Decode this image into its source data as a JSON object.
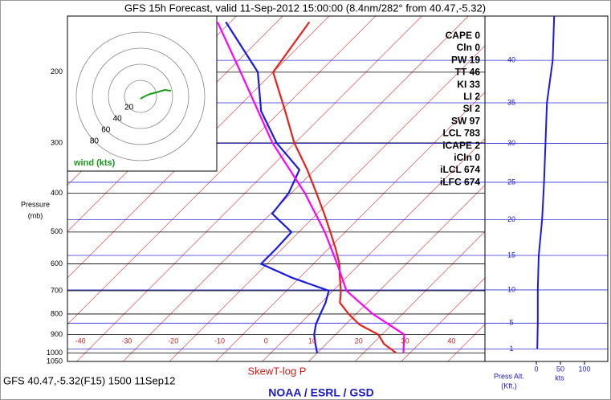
{
  "chart_data": {
    "type": "skewt",
    "title": "GFS 15h Forecast, valid 11-Sep-2012 15:00:00 (8.4nm/282° from 40.47,-5.32)",
    "subtitle": "GFS 40.47,-5.32(F15) 1500 11Sep12",
    "xlabel": "SkewT-log P",
    "credit": "NOAA / ESRL / GSD",
    "ylabel": "Pressure",
    "yunit": "(mb)",
    "log_y": true,
    "ylim": [
      1050,
      145
    ],
    "yticks": [
      1050,
      1000,
      900,
      800,
      700,
      600,
      500,
      400,
      300,
      200
    ],
    "xlim": [
      -42,
      48
    ],
    "xticks": [
      -40,
      -30,
      -20,
      -10,
      0,
      10,
      20,
      30,
      40
    ],
    "isotherms": [
      -120,
      -110,
      -100,
      -90,
      -80,
      -70,
      -60,
      -50,
      -40,
      -30,
      -20,
      -10,
      0,
      10,
      20,
      30,
      40
    ],
    "series": [
      {
        "color": "#e8211c",
        "pressure": [
          1000,
          950,
          900,
          850,
          800,
          750,
          700,
          650,
          600,
          550,
          500,
          450,
          400,
          350,
          300,
          250,
          200,
          150
        ],
        "values": [
          27,
          22.5,
          19.2,
          13,
          8.4,
          4.1,
          1.7,
          -1.3,
          -4.4,
          -8.5,
          -13.2,
          -18.5,
          -24.6,
          -31.6,
          -40.2,
          -49,
          -60,
          -63
        ]
      },
      {
        "color": "#1a1ae6",
        "pressure": [
          1000,
          950,
          900,
          850,
          800,
          750,
          700,
          650,
          600,
          550,
          500,
          450,
          400,
          350,
          300,
          250,
          200,
          150
        ],
        "values": [
          10,
          7.7,
          5.4,
          3.6,
          2.3,
          1,
          -0.9,
          -11.6,
          -21.3,
          -21.3,
          -21.6,
          -29.7,
          -30.6,
          -33.3,
          -44,
          -54.2,
          -63.3,
          -81
        ]
      },
      {
        "color": "#ff00ff",
        "pressure": [
          1000,
          900,
          800,
          700,
          600,
          500,
          400,
          300,
          200,
          150
        ],
        "values": [
          28.6,
          24.8,
          13.6,
          2.9,
          -4.9,
          -14.4,
          -27.1,
          -44.9,
          -67,
          -82.8
        ]
      }
    ],
    "indices": [
      {
        "label": "CAPE",
        "value": 0
      },
      {
        "label": "Cln",
        "value": 0
      },
      {
        "label": "PW",
        "value": 19
      },
      {
        "label": "TT",
        "value": 46
      },
      {
        "label": "KI",
        "value": 33
      },
      {
        "label": "LI",
        "value": 2
      },
      {
        "label": "SI",
        "value": 2
      },
      {
        "label": "SW",
        "value": 97
      },
      {
        "label": "LCL",
        "value": 783
      },
      {
        "label": "iCAPE",
        "value": 2
      },
      {
        "label": "iCln",
        "value": 0
      },
      {
        "label": "iLCL",
        "value": 674
      },
      {
        "label": "iLFC",
        "value": 674
      }
    ],
    "y2label": "Press Alt.",
    "y2unit": "(Kft.)",
    "y2ticks": [
      1,
      5,
      10,
      15,
      20,
      25,
      30,
      35,
      40
    ],
    "wind": {
      "color": "#1a1ae6",
      "xlabel": "kts",
      "xticks": [
        0,
        50,
        100
      ],
      "xlim": [
        0,
        100
      ],
      "altitude": [
        1,
        5,
        10,
        15,
        20,
        25,
        30,
        35,
        40,
        47
      ],
      "speed": [
        2,
        3,
        3,
        5,
        12,
        16,
        19,
        22,
        34,
        37
      ]
    },
    "hodograph": {
      "label": "wind (kts)",
      "rings": [
        20,
        40,
        60,
        80
      ],
      "color": "#1a9a1a",
      "u": [
        0,
        5,
        12,
        20,
        30,
        38
      ],
      "v": [
        -3,
        0,
        3,
        5,
        8,
        7
      ]
    }
  }
}
